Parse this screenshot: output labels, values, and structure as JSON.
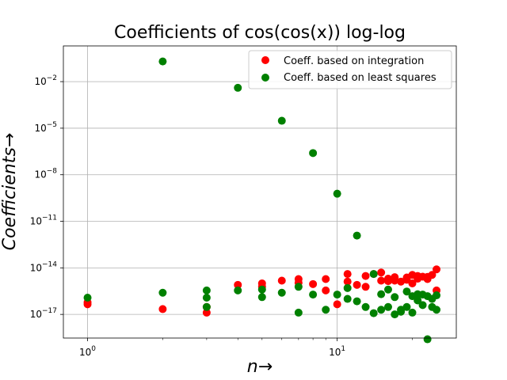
{
  "chart_data": {
    "type": "scatter",
    "title": "Coefficients of cos(cos(x)) log-log",
    "xlabel": "n→",
    "ylabel": "Coefficients→",
    "xscale": "log",
    "yscale": "log",
    "xlim": [
      0.8,
      30
    ],
    "ylim": [
      3e-19,
      2
    ],
    "grid": true,
    "legend_position": "top-right",
    "x_ticks": [
      {
        "value": 1,
        "base": "10",
        "exp": "0"
      },
      {
        "value": 10,
        "base": "10",
        "exp": "1"
      }
    ],
    "y_ticks": [
      {
        "value": 1e-17,
        "base": "10",
        "exp": "−17"
      },
      {
        "value": 1e-14,
        "base": "10",
        "exp": "−14"
      },
      {
        "value": 1e-11,
        "base": "10",
        "exp": "−11"
      },
      {
        "value": 1e-08,
        "base": "10",
        "exp": "−8"
      },
      {
        "value": 1e-05,
        "base": "10",
        "exp": "−5"
      },
      {
        "value": 0.01,
        "base": "10",
        "exp": "−2"
      }
    ],
    "series": [
      {
        "name": "Coeff. based on integration",
        "color": "#ff0000",
        "points": [
          [
            1,
            6e-17
          ],
          [
            1,
            4.5e-17
          ],
          [
            2,
            2.2e-17
          ],
          [
            3,
            3e-17
          ],
          [
            3,
            1.3e-17
          ],
          [
            4,
            8e-16
          ],
          [
            5,
            6e-16
          ],
          [
            5,
            1e-15
          ],
          [
            6,
            1.5e-15
          ],
          [
            7,
            1.9e-15
          ],
          [
            7,
            1.1e-15
          ],
          [
            8,
            9e-16
          ],
          [
            9,
            1.9e-15
          ],
          [
            9,
            3.5e-16
          ],
          [
            10,
            4.5e-17
          ],
          [
            11,
            4e-15
          ],
          [
            11,
            1.3e-15
          ],
          [
            12,
            8e-16
          ],
          [
            13,
            3e-15
          ],
          [
            13,
            6e-16
          ],
          [
            14,
            4e-15
          ],
          [
            15,
            5e-15
          ],
          [
            15,
            1.5e-15
          ],
          [
            16,
            2e-15
          ],
          [
            16,
            1.4e-15
          ],
          [
            17,
            2.5e-15
          ],
          [
            17,
            1.5e-15
          ],
          [
            18,
            1.3e-15
          ],
          [
            19,
            2.4e-15
          ],
          [
            19,
            1.7e-15
          ],
          [
            20,
            3.5e-15
          ],
          [
            20,
            1e-15
          ],
          [
            21,
            3e-15
          ],
          [
            21,
            2e-15
          ],
          [
            22,
            2.7e-15
          ],
          [
            23,
            2.6e-15
          ],
          [
            23,
            1.9e-15
          ],
          [
            24,
            3.5e-15
          ],
          [
            25,
            8e-15
          ],
          [
            25,
            3.5e-16
          ]
        ]
      },
      {
        "name": "Coeff. based on least squares",
        "color": "#008000",
        "points": [
          [
            1,
            1.2e-16
          ],
          [
            2,
            0.2
          ],
          [
            2,
            2.5e-16
          ],
          [
            3,
            3e-17
          ],
          [
            3,
            3.5e-16
          ],
          [
            3,
            1.2e-16
          ],
          [
            4,
            0.004
          ],
          [
            4,
            3.5e-16
          ],
          [
            5,
            1.3e-16
          ],
          [
            5,
            4e-16
          ],
          [
            6,
            3e-05
          ],
          [
            6,
            2.5e-16
          ],
          [
            7,
            1.3e-17
          ],
          [
            7,
            6e-16
          ],
          [
            8,
            2.5e-07
          ],
          [
            8,
            1.9e-16
          ],
          [
            9,
            2e-17
          ],
          [
            10,
            6e-10
          ],
          [
            10,
            1.9e-16
          ],
          [
            11,
            1e-16
          ],
          [
            11,
            5e-16
          ],
          [
            12,
            1.2e-12
          ],
          [
            12,
            7e-17
          ],
          [
            13,
            3e-17
          ],
          [
            14,
            4e-15
          ],
          [
            14,
            1.2e-17
          ],
          [
            15,
            2e-16
          ],
          [
            15,
            2e-17
          ],
          [
            16,
            4e-16
          ],
          [
            16,
            3e-17
          ],
          [
            17,
            1e-17
          ],
          [
            17,
            1.3e-16
          ],
          [
            18,
            2e-17
          ],
          [
            18,
            1.5e-17
          ],
          [
            19,
            3e-16
          ],
          [
            19,
            3e-17
          ],
          [
            20,
            1.3e-17
          ],
          [
            20,
            1.5e-16
          ],
          [
            21,
            8e-17
          ],
          [
            21,
            2e-16
          ],
          [
            22,
            1.9e-16
          ],
          [
            22,
            4e-17
          ],
          [
            23,
            2.5e-19
          ],
          [
            23,
            1.5e-16
          ],
          [
            24,
            3e-17
          ],
          [
            24,
            1e-16
          ],
          [
            25,
            1.7e-16
          ],
          [
            25,
            2e-17
          ]
        ]
      }
    ]
  }
}
